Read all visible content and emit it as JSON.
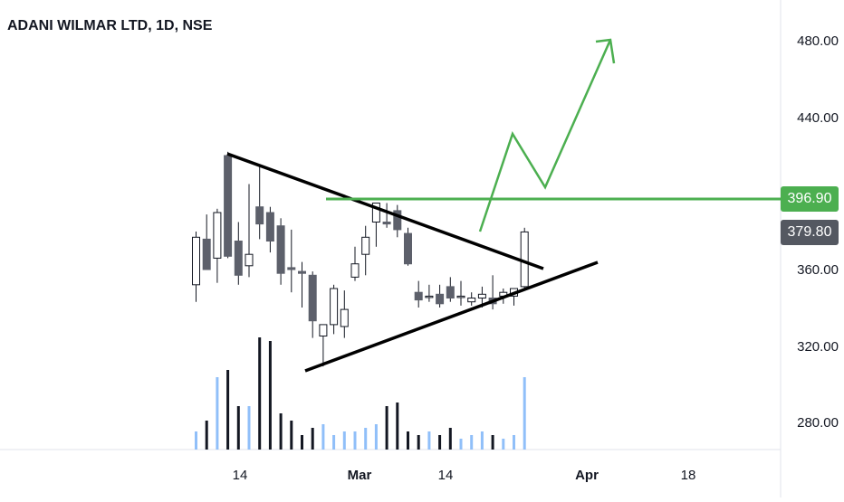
{
  "header": {
    "title": "ADANI WILMAR LTD, 1D, NSE"
  },
  "price_axis": {
    "labels": [
      "480.00",
      "440.00",
      "396.90",
      "379.80",
      "360.00",
      "320.00",
      "280.00"
    ]
  },
  "time_axis": {
    "labels": [
      "14",
      "Mar",
      "14",
      "Apr",
      "18"
    ]
  },
  "tags": [
    {
      "value": "396.90",
      "color": "#4caf50"
    },
    {
      "value": "379.80",
      "color": "#545861"
    }
  ],
  "colors": {
    "up": "#ffffff",
    "down": "#5d606b",
    "wick": "#131722",
    "vol_up": "#90bff9",
    "vol_down": "#131722",
    "trendline": "#000000",
    "projection": "#4caf50"
  },
  "chart_data": {
    "type": "candlestick",
    "title": "ADANI WILMAR LTD, 1D, NSE",
    "ylim": [
      270,
      500
    ],
    "y_ticks": [
      280,
      320,
      360,
      440,
      480
    ],
    "x_labels": [
      "14",
      "Mar",
      "14",
      "Apr",
      "18"
    ],
    "candles": [
      {
        "o": 352,
        "h": 380,
        "l": 343,
        "c": 377
      },
      {
        "o": 376,
        "h": 389,
        "l": 362,
        "c": 360
      },
      {
        "o": 366,
        "h": 392,
        "l": 353,
        "c": 390
      },
      {
        "o": 420,
        "h": 422,
        "l": 366,
        "c": 367
      },
      {
        "o": 375,
        "h": 385,
        "l": 352,
        "c": 357
      },
      {
        "o": 362,
        "h": 405,
        "l": 356,
        "c": 368
      },
      {
        "o": 393,
        "h": 415,
        "l": 376,
        "c": 384
      },
      {
        "o": 390,
        "h": 393,
        "l": 369,
        "c": 375
      },
      {
        "o": 383,
        "h": 387,
        "l": 352,
        "c": 358
      },
      {
        "o": 361,
        "h": 381,
        "l": 348,
        "c": 360
      },
      {
        "o": 359,
        "h": 364,
        "l": 340,
        "c": 358
      },
      {
        "o": 357,
        "h": 359,
        "l": 324,
        "c": 333
      },
      {
        "o": 325,
        "h": 329,
        "l": 309,
        "c": 331
      },
      {
        "o": 331,
        "h": 352,
        "l": 326,
        "c": 350
      },
      {
        "o": 330,
        "h": 349,
        "l": 324,
        "c": 339
      },
      {
        "o": 356,
        "h": 372,
        "l": 354,
        "c": 363
      },
      {
        "o": 368,
        "h": 383,
        "l": 357,
        "c": 377
      },
      {
        "o": 385,
        "h": 395,
        "l": 372,
        "c": 395
      },
      {
        "o": 385,
        "h": 395,
        "l": 382,
        "c": 384
      },
      {
        "o": 391,
        "h": 394,
        "l": 377,
        "c": 381
      },
      {
        "o": 379,
        "h": 382,
        "l": 362,
        "c": 363
      },
      {
        "o": 348,
        "h": 354,
        "l": 340,
        "c": 344
      },
      {
        "o": 346,
        "h": 352,
        "l": 343,
        "c": 346
      },
      {
        "o": 347,
        "h": 352,
        "l": 340,
        "c": 342
      },
      {
        "o": 351,
        "h": 356,
        "l": 343,
        "c": 345
      },
      {
        "o": 346,
        "h": 354,
        "l": 341,
        "c": 346
      },
      {
        "o": 343,
        "h": 348,
        "l": 341,
        "c": 345
      },
      {
        "o": 345,
        "h": 351,
        "l": 340,
        "c": 347
      },
      {
        "o": 345,
        "h": 357,
        "l": 339,
        "c": 342
      },
      {
        "o": 346,
        "h": 350,
        "l": 342,
        "c": 348
      },
      {
        "o": 346,
        "h": 350,
        "l": 341,
        "c": 350
      },
      {
        "o": 351,
        "h": 382,
        "l": 350,
        "c": 379.8
      }
    ],
    "volume_relative": [
      0.05,
      0.08,
      0.2,
      0.22,
      0.12,
      0.12,
      0.31,
      0.3,
      0.1,
      0.08,
      0.04,
      0.06,
      0.07,
      0.04,
      0.05,
      0.05,
      0.06,
      0.07,
      0.12,
      0.13,
      0.05,
      0.04,
      0.05,
      0.04,
      0.06,
      0.03,
      0.04,
      0.05,
      0.04,
      0.03,
      0.04,
      0.2
    ],
    "horizontal_level": 396.9,
    "last_price": 379.8
  }
}
